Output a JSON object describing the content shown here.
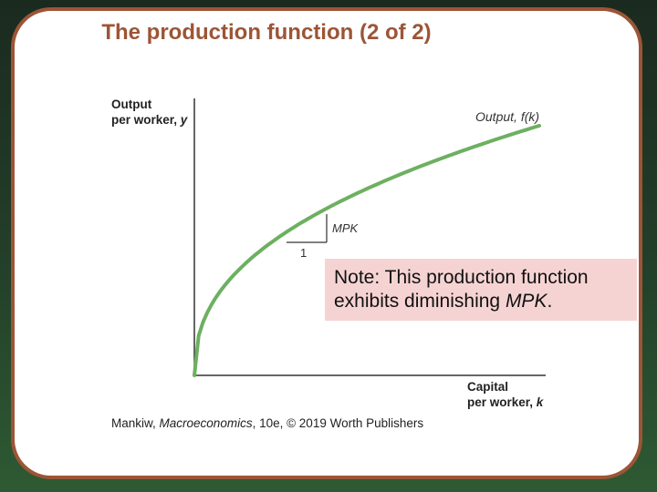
{
  "slide": {
    "title": "The production function (2 of 2)"
  },
  "figure": {
    "y_axis_label_line1": "Output",
    "y_axis_label_line2": "per worker, ",
    "y_axis_var": "y",
    "x_axis_label_line1": "Capital",
    "x_axis_label_line2": "per worker, ",
    "x_axis_var": "k",
    "curve_label_prefix": "Output, ",
    "curve_label_func": "f(k)",
    "slope_run_label": "1",
    "slope_rise_label": "MPK",
    "curve_color": "#6db060",
    "credit_author": "Mankiw, ",
    "credit_book": "Macroeconomics",
    "credit_rest": ", 10e, © 2019 Worth Publishers"
  },
  "note": {
    "text_line1": "Note: This production function",
    "text_line2_prefix": "exhibits diminishing ",
    "text_line2_emph": "MPK",
    "text_line2_suffix": "."
  }
}
